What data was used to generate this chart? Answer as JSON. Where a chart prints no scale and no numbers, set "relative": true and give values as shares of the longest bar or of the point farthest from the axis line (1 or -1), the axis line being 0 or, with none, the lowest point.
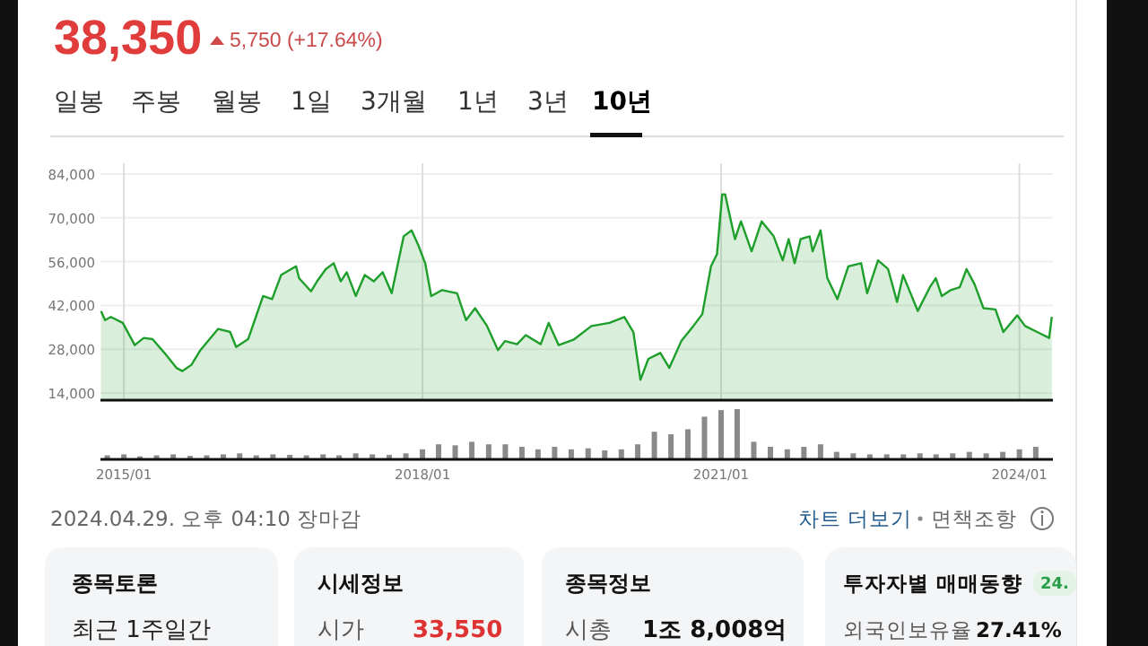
{
  "chart_data": [
    {
      "type": "area",
      "title": "38,350",
      "subtitle": "5,750 (+17.64%)",
      "annotations": [
        "일봉",
        "주봉",
        "월봉",
        "1일",
        "3개월",
        "1년",
        "3년",
        "10년",
        "2024.04.29. 오후 04:10 장마감",
        "차트 더보기",
        "면책조항",
        "종목토론",
        "최근 1주일간",
        "시세정보",
        "시가",
        "33,550",
        "종목정보",
        "시총",
        "1조 8,008억",
        "투자자별 매매동향",
        "24.",
        "외국인보유율",
        "27.41%"
      ],
      "x": [
        "2014-10-09",
        "2014-10-24",
        "2014-11-14",
        "2014-12-28",
        "2015-02-10",
        "2015-03-15",
        "2015-04-16",
        "2015-05-30",
        "2015-07-13",
        "2015-08-04",
        "2015-09-06",
        "2015-10-09",
        "2015-12-13",
        "2016-01-26",
        "2016-02-17",
        "2016-04-01",
        "2016-05-26",
        "2016-06-28",
        "2016-07-31",
        "2016-09-24",
        "2016-10-05",
        "2016-11-18",
        "2016-12-10",
        "2017-01-11",
        "2017-02-09",
        "2017-03-07",
        "2017-03-29",
        "2017-05-01",
        "2017-06-03",
        "2017-07-06",
        "2017-08-08",
        "2017-09-10",
        "2017-10-24",
        "2017-11-22",
        "2017-12-17",
        "2018-01-11",
        "2018-02-02",
        "2018-03-14",
        "2018-05-08",
        "2018-06-10",
        "2018-07-13",
        "2018-08-26",
        "2018-10-05",
        "2018-10-31",
        "2018-12-14",
        "2019-01-15",
        "2019-03-11",
        "2019-04-09",
        "2019-05-16",
        "2019-07-09",
        "2019-09-13",
        "2019-11-18",
        "2020-01-12",
        "2020-02-14",
        "2020-03-11",
        "2020-04-09",
        "2020-05-23",
        "2020-06-25",
        "2020-08-08",
        "2020-09-21",
        "2020-10-24",
        "2020-11-25",
        "2020-12-17",
        "2021-01-05",
        "2021-01-16",
        "2021-01-30",
        "2021-02-21",
        "2021-03-15",
        "2021-04-23",
        "2021-05-30",
        "2021-07-13",
        "2021-08-15",
        "2021-09-06",
        "2021-09-28",
        "2021-10-20",
        "2021-11-22",
        "2021-12-03",
        "2022-01-01",
        "2022-01-26",
        "2022-03-04",
        "2022-04-13",
        "2022-05-30",
        "2022-06-21",
        "2022-07-31",
        "2022-09-06",
        "2022-10-09",
        "2022-10-31",
        "2022-12-24",
        "2023-02-06",
        "2023-02-28",
        "2023-03-22",
        "2023-04-24",
        "2023-05-27",
        "2023-06-21",
        "2023-07-20",
        "2023-08-22",
        "2023-10-05",
        "2023-11-03",
        "2023-12-24",
        "2024-01-22",
        "2024-03-06",
        "2024-04-19",
        "2024-04-29"
      ],
      "values": [
        40200,
        37300,
        38300,
        36400,
        29300,
        31600,
        31200,
        26800,
        22000,
        21000,
        23000,
        27700,
        34500,
        33500,
        28700,
        31200,
        45000,
        44000,
        51700,
        54500,
        50700,
        46500,
        49700,
        53600,
        55500,
        49700,
        52600,
        45000,
        51700,
        49700,
        52600,
        45900,
        64100,
        66000,
        61200,
        55500,
        45000,
        46900,
        45900,
        37300,
        41100,
        35400,
        27700,
        30600,
        29600,
        32500,
        29600,
        36400,
        29300,
        31000,
        35400,
        36400,
        38300,
        33500,
        18200,
        24900,
        26800,
        22000,
        30600,
        35400,
        39200,
        54500,
        58400,
        77500,
        77500,
        71800,
        63200,
        68900,
        59300,
        68900,
        64100,
        56400,
        63200,
        55500,
        63200,
        64100,
        59300,
        66000,
        50700,
        44000,
        54500,
        55500,
        45900,
        56400,
        53600,
        43100,
        51700,
        40200,
        47800,
        50700,
        45000,
        46900,
        47800,
        53600,
        48800,
        41100,
        40700,
        33500,
        38800,
        35400,
        33500,
        31600,
        38350
      ],
      "color": "#1e9e2a",
      "xlim": [
        "2014-10-07",
        "2024-05-03"
      ],
      "ylim": [
        11700,
        84000
      ],
      "xticks": [
        {
          "value": "2015-01-01",
          "label": null
        },
        {
          "value": "2018-01-01",
          "label": null
        },
        {
          "value": "2021-01-01",
          "label": null
        },
        {
          "value": "2024-01-01",
          "label": null
        }
      ],
      "yticks": [
        {
          "value": 14000,
          "label": "14,000"
        },
        {
          "value": 28000,
          "label": "28,000"
        },
        {
          "value": 42000,
          "label": "42,000"
        },
        {
          "value": 56000,
          "label": "56,000"
        },
        {
          "value": 70000,
          "label": "70,000"
        },
        {
          "value": 84000,
          "label": "84,000"
        }
      ],
      "grid": true,
      "tick_labels": "y"
    },
    {
      "type": "bar",
      "relative": true,
      "color": "#8a8a8a",
      "tick_labels": "x",
      "x": [
        "2014-11",
        "2015-01",
        "2015-03",
        "2015-05",
        "2015-07",
        "2015-09",
        "2015-11",
        "2016-01",
        "2016-03",
        "2016-05",
        "2016-07",
        "2016-09",
        "2016-11",
        "2017-01",
        "2017-03",
        "2017-05",
        "2017-07",
        "2017-09",
        "2017-11",
        "2018-01",
        "2018-03",
        "2018-05",
        "2018-07",
        "2018-09",
        "2018-11",
        "2019-01",
        "2019-03",
        "2019-05",
        "2019-07",
        "2019-09",
        "2019-11",
        "2020-01",
        "2020-03",
        "2020-05",
        "2020-07",
        "2020-09",
        "2020-11",
        "2021-01",
        "2021-03",
        "2021-05",
        "2021-07",
        "2021-09",
        "2021-11",
        "2022-01",
        "2022-03",
        "2022-05",
        "2022-07",
        "2022-09",
        "2022-11",
        "2023-01",
        "2023-03",
        "2023-05",
        "2023-07",
        "2023-09",
        "2023-11",
        "2024-01",
        "2024-03"
      ],
      "values": [
        0.08,
        0.1,
        0.06,
        0.08,
        0.1,
        0.07,
        0.08,
        0.1,
        0.12,
        0.08,
        0.1,
        0.09,
        0.08,
        0.1,
        0.08,
        0.12,
        0.1,
        0.09,
        0.12,
        0.2,
        0.3,
        0.28,
        0.35,
        0.3,
        0.3,
        0.25,
        0.2,
        0.25,
        0.2,
        0.22,
        0.18,
        0.2,
        0.3,
        0.55,
        0.5,
        0.6,
        0.85,
        0.98,
        1.0,
        0.35,
        0.25,
        0.2,
        0.25,
        0.3,
        0.15,
        0.12,
        0.1,
        0.1,
        0.1,
        0.12,
        0.1,
        0.12,
        0.15,
        0.12,
        0.15,
        0.2,
        0.25
      ],
      "xlim": [
        "2014-10-07",
        "2024-05-03"
      ],
      "xticks": [
        {
          "value": "2015-01-01",
          "label": "2015/01"
        },
        {
          "value": "2018-01-01",
          "label": "2018/01"
        },
        {
          "value": "2021-01-01",
          "label": "2021/01"
        },
        {
          "value": "2024-01-01",
          "label": "2024/01"
        }
      ]
    }
  ]
}
